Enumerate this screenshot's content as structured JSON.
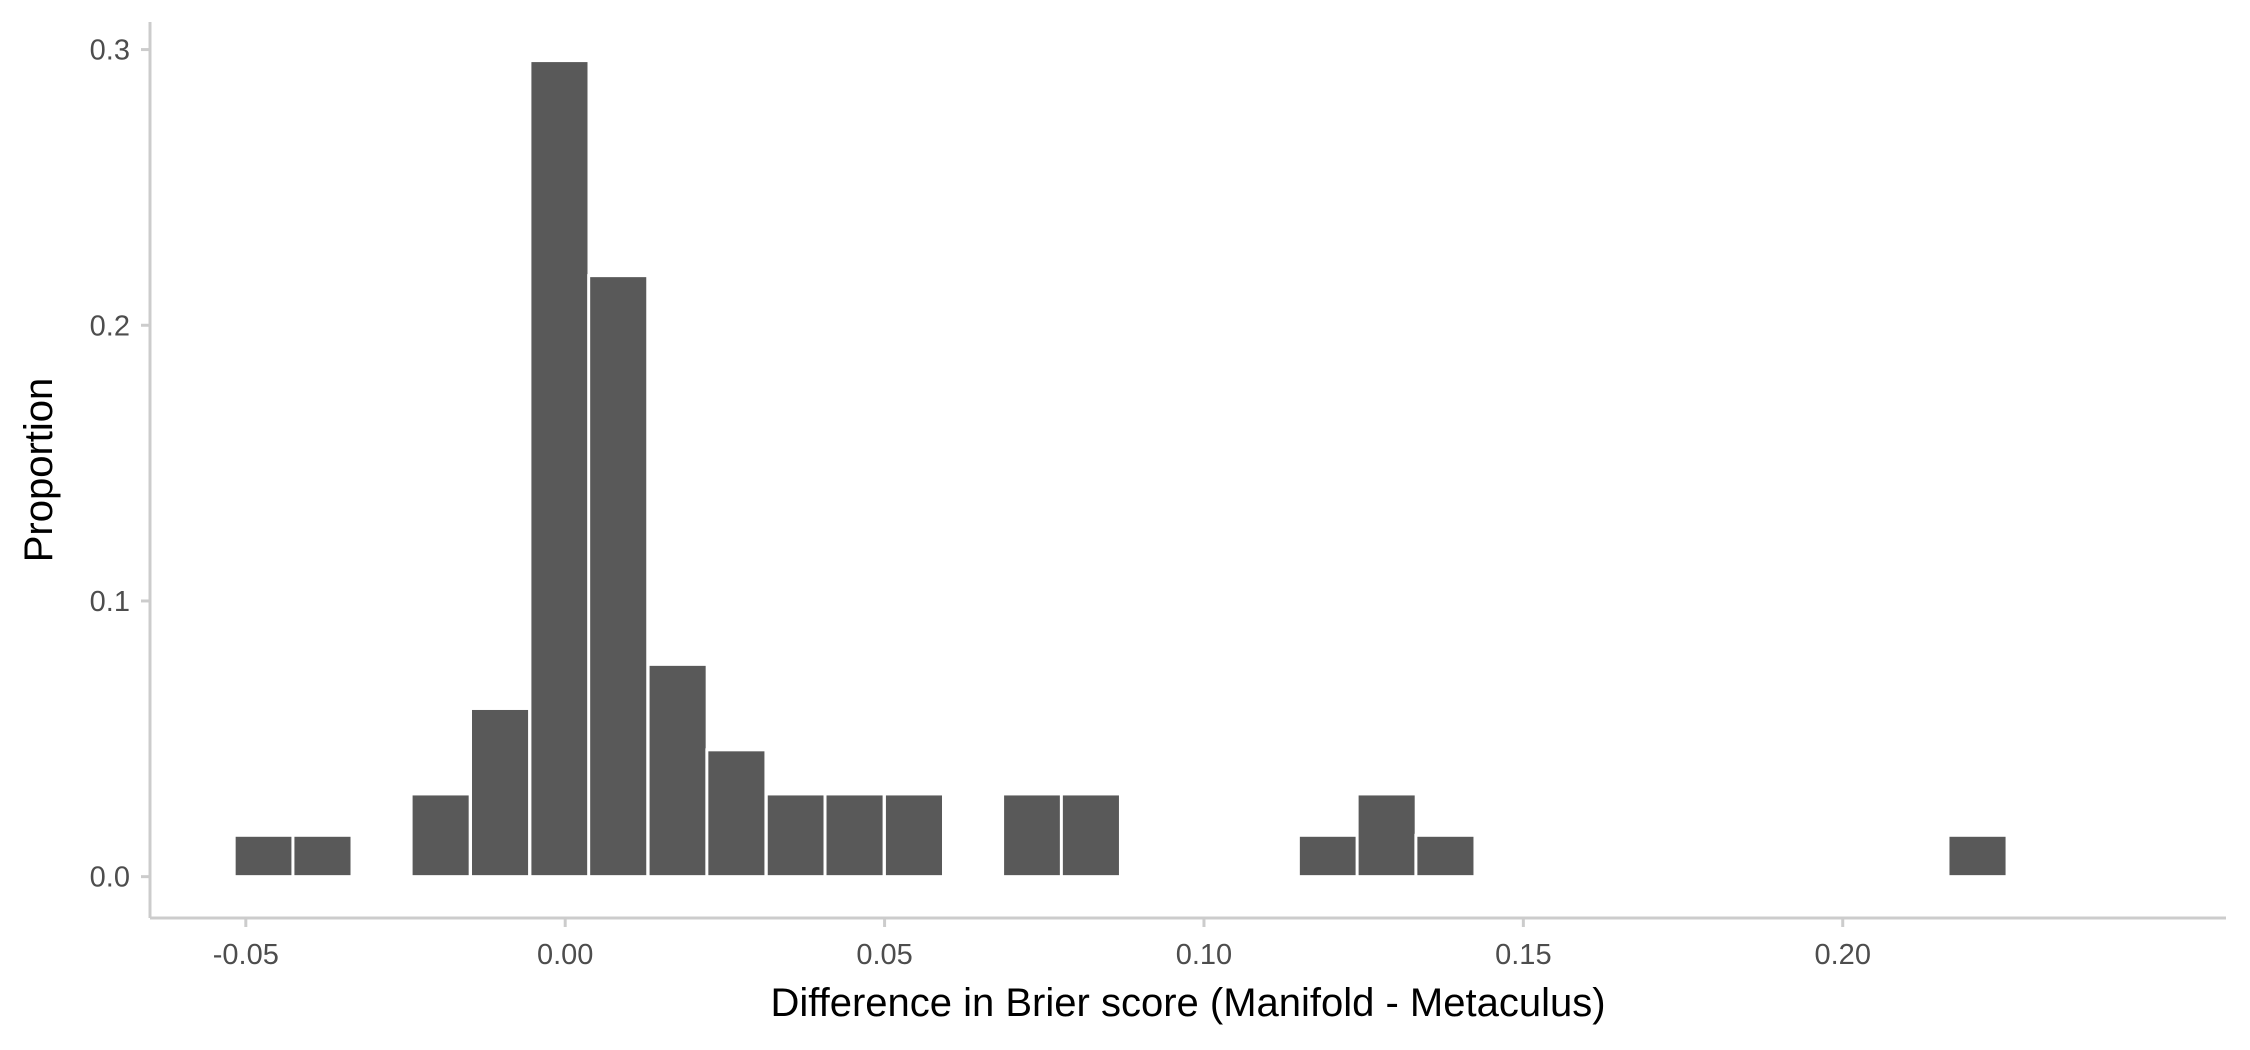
{
  "chart_data": {
    "type": "bar",
    "title": "",
    "xlabel": "Difference in Brier score (Manifold - Metaculus)",
    "ylabel": "Proportion",
    "xlim": [
      -0.065,
      0.26
    ],
    "ylim": [
      -0.015,
      0.31
    ],
    "x_ticks": [
      -0.05,
      0.0,
      0.05,
      0.1,
      0.15,
      0.2
    ],
    "x_tick_labels": [
      "-0.05",
      "0.00",
      "0.05",
      "0.10",
      "0.15",
      "0.20"
    ],
    "y_ticks": [
      0.0,
      0.1,
      0.2,
      0.3
    ],
    "y_tick_labels": [
      "0.0",
      "0.1",
      "0.2",
      "0.3"
    ],
    "bin_width": 0.00925,
    "bars": [
      {
        "x": -0.0472,
        "value": 0.015
      },
      {
        "x": -0.038,
        "value": 0.015
      },
      {
        "x": -0.0195,
        "value": 0.03
      },
      {
        "x": -0.0102,
        "value": 0.061
      },
      {
        "x": -0.0009,
        "value": 0.296
      },
      {
        "x": 0.0083,
        "value": 0.218
      },
      {
        "x": 0.0176,
        "value": 0.077
      },
      {
        "x": 0.0268,
        "value": 0.046
      },
      {
        "x": 0.0361,
        "value": 0.03
      },
      {
        "x": 0.0453,
        "value": 0.03
      },
      {
        "x": 0.0546,
        "value": 0.03
      },
      {
        "x": 0.0731,
        "value": 0.03
      },
      {
        "x": 0.0823,
        "value": 0.03
      },
      {
        "x": 0.1194,
        "value": 0.015
      },
      {
        "x": 0.1286,
        "value": 0.03
      },
      {
        "x": 0.1378,
        "value": 0.015
      },
      {
        "x": 0.2211,
        "value": 0.015
      }
    ],
    "bar_color": "#595959",
    "grid": false,
    "legend": "none"
  }
}
